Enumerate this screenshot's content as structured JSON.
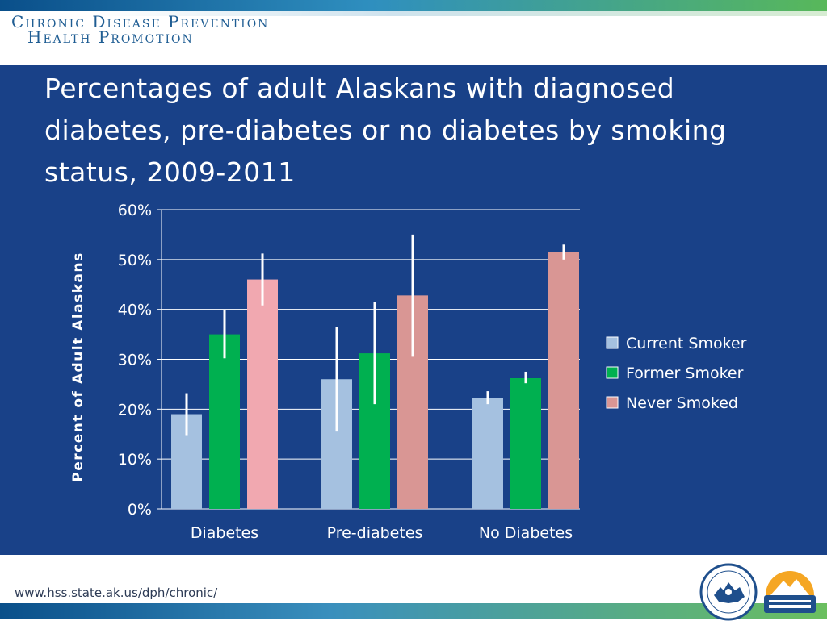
{
  "header": {
    "brand_line1": "Chronic Disease Prevention",
    "brand_line2": "Health Promotion"
  },
  "footer": {
    "url": "www.hss.state.ak.us/dph/chronic/",
    "state_seal_text": "STATE of ALASKA",
    "public_health_logo_text": "ALASKA DIVISION OF Public Health"
  },
  "colors": {
    "panel_bg": "#194188",
    "current_smoker": "#a5c1e0",
    "former_smoker": "#00b050",
    "never_smoked_diabetes": "#f1a8b0",
    "never_smoked": "#d99694"
  },
  "chart_data": {
    "type": "bar",
    "title": "Percentages of adult Alaskans with diagnosed diabetes, pre-diabetes or no diabetes by smoking status, 2009-2011",
    "ylabel": "Percent of Adult Alaskans",
    "xlabel": "",
    "ylim": [
      0,
      60
    ],
    "yticks": [
      "0%",
      "10%",
      "20%",
      "30%",
      "40%",
      "50%",
      "60%"
    ],
    "grid": true,
    "legend_position": "right",
    "categories": [
      "Diabetes",
      "Pre-diabetes",
      "No Diabetes"
    ],
    "series": [
      {
        "name": "Current Smoker",
        "values": [
          19,
          26,
          22.2
        ],
        "error_low": [
          14.8,
          15.5,
          21
        ],
        "error_high": [
          23.2,
          36.5,
          23.6
        ]
      },
      {
        "name": "Former Smoker",
        "values": [
          35,
          31.2,
          26.2
        ],
        "error_low": [
          30.2,
          21,
          25.2
        ],
        "error_high": [
          39.8,
          41.5,
          27.5
        ]
      },
      {
        "name": "Never Smoked",
        "values": [
          46,
          42.8,
          51.5
        ],
        "error_low": [
          40.8,
          30.5,
          50
        ],
        "error_high": [
          51.2,
          55,
          53
        ]
      }
    ]
  }
}
